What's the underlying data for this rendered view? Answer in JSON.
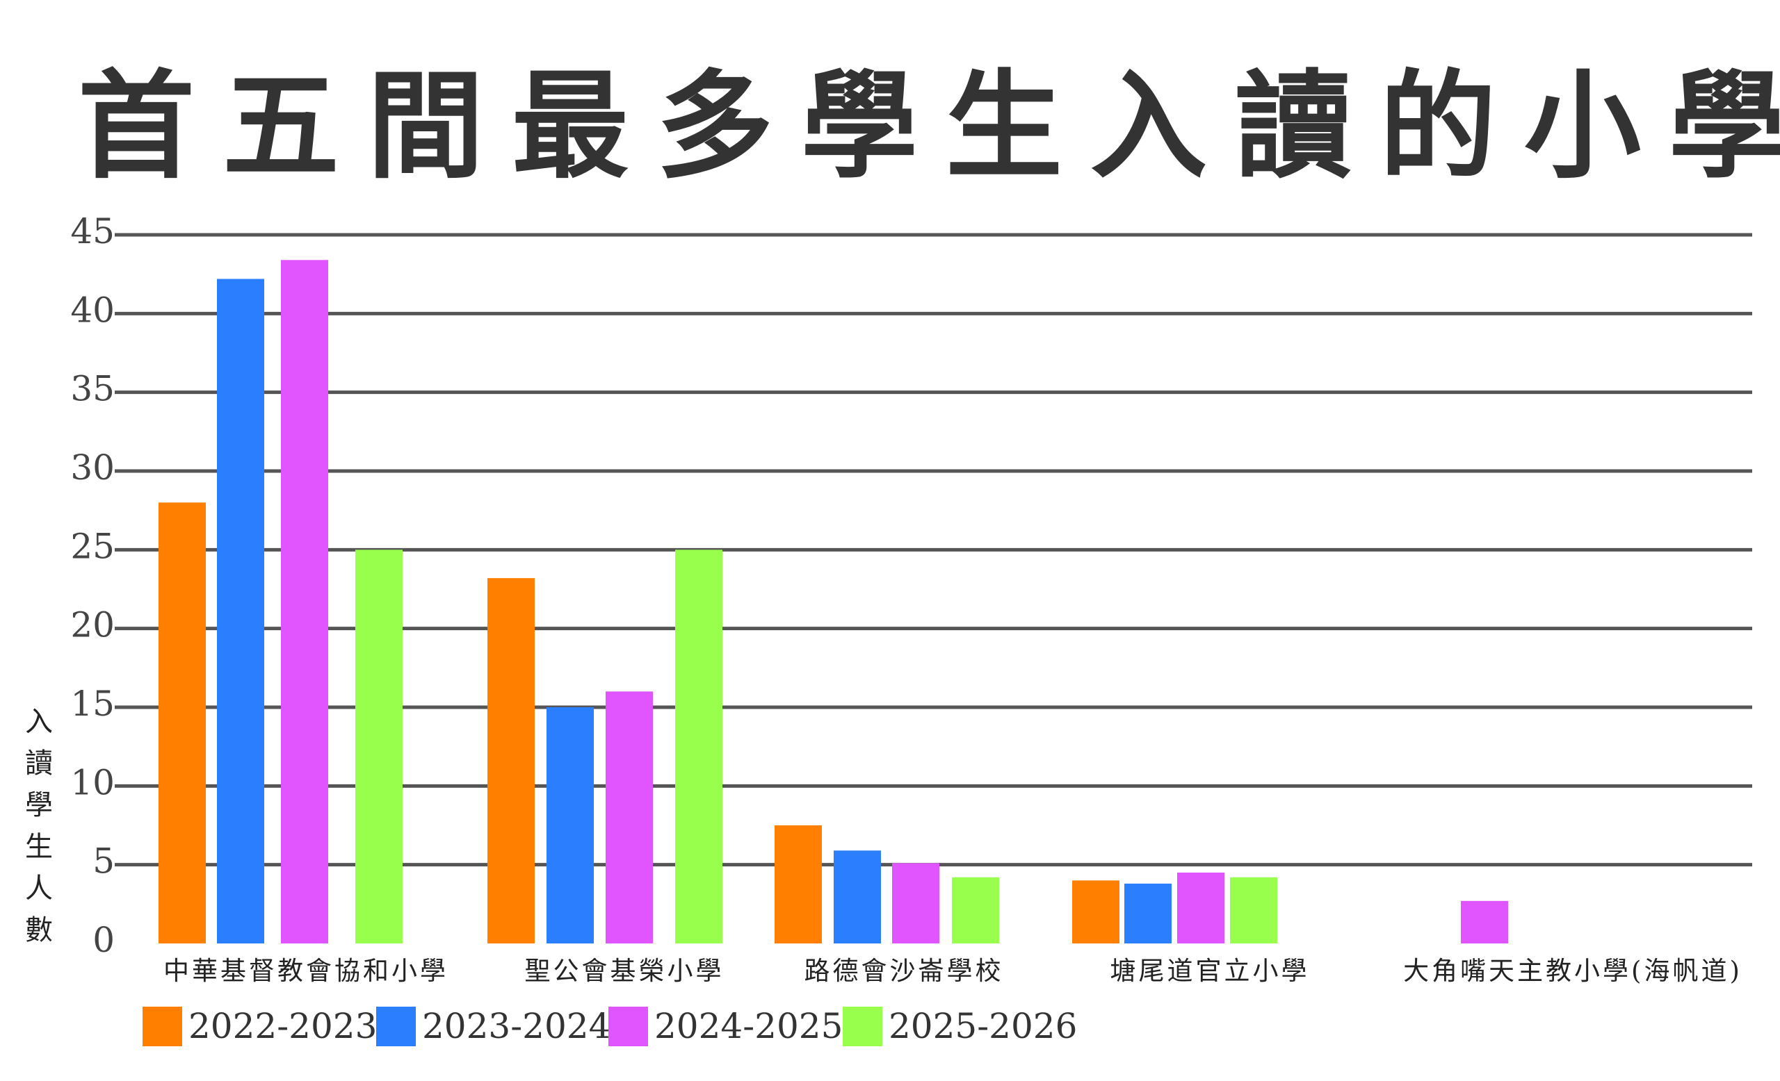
{
  "chart_data": {
    "type": "bar",
    "title": "首五間最多學生入讀的小學",
    "ylabel": "入讀學生人數",
    "xlabel": "",
    "ylim": [
      0,
      45
    ],
    "yticks": [
      0,
      5,
      10,
      15,
      20,
      25,
      30,
      35,
      40,
      45
    ],
    "grid": true,
    "legend_position": "bottom-left",
    "categories": [
      "中華基督教會協和小學",
      "聖公會基榮小學",
      "路德會沙崙學校",
      "塘尾道官立小學",
      "大角嘴天主教小學(海帆道)"
    ],
    "series": [
      {
        "name": "2022-2023",
        "color": "#ff7f00",
        "values": [
          28,
          23.2,
          7.5,
          4,
          null
        ]
      },
      {
        "name": "2023-2024",
        "color": "#2b7fff",
        "values": [
          42.2,
          15,
          5.9,
          3.8,
          null
        ]
      },
      {
        "name": "2024-2025",
        "color": "#e055ff",
        "values": [
          43.4,
          16,
          5.1,
          4.5,
          2.7
        ]
      },
      {
        "name": "2025-2026",
        "color": "#99ff4d",
        "values": [
          25,
          25,
          4.2,
          4.2,
          null
        ]
      }
    ]
  }
}
